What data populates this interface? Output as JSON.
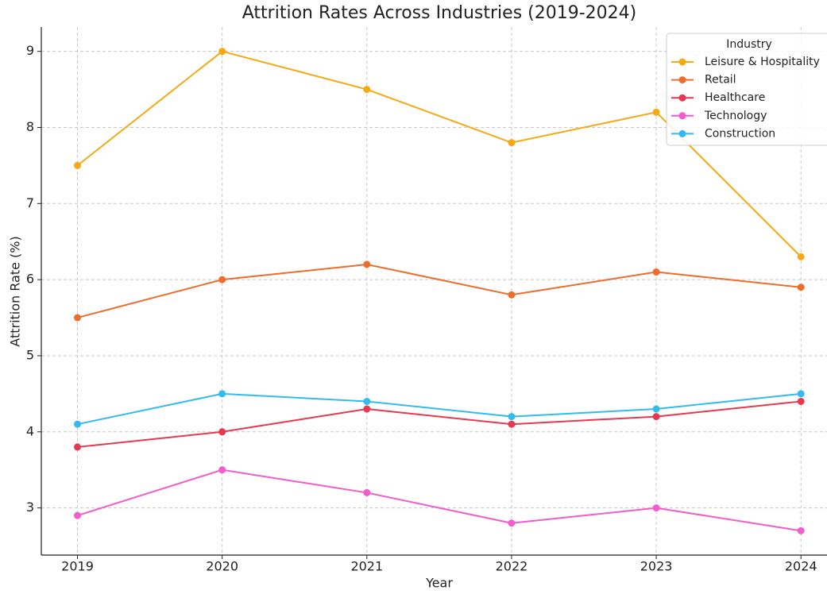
{
  "chart_data": {
    "type": "line",
    "title": "Attrition Rates Across Industries (2019-2024)",
    "xlabel": "Year",
    "ylabel": "Attrition Rate (%)",
    "x": [
      2019,
      2020,
      2021,
      2022,
      2023,
      2024
    ],
    "xlim": [
      2018.75,
      2024.18
    ],
    "xticks": [
      2019,
      2020,
      2021,
      2022,
      2023,
      2024
    ],
    "ylim": [
      2.38,
      9.32
    ],
    "yticks": [
      3,
      4,
      5,
      6,
      7,
      8,
      9
    ],
    "grid": true,
    "legend": "upper right",
    "legend_title": "Industry",
    "series": [
      {
        "name": "Leisure & Hospitality",
        "color": "#f5a914",
        "values": [
          7.5,
          9.0,
          8.5,
          7.8,
          8.2,
          6.3
        ]
      },
      {
        "name": "Retail",
        "color": "#ee6d2d",
        "values": [
          5.5,
          6.0,
          6.2,
          5.8,
          6.1,
          5.9
        ]
      },
      {
        "name": "Healthcare",
        "color": "#e8384f",
        "values": [
          3.8,
          4.0,
          4.3,
          4.1,
          4.2,
          4.4
        ]
      },
      {
        "name": "Technology",
        "color": "#f25ccb",
        "values": [
          2.9,
          3.5,
          3.2,
          2.8,
          3.0,
          2.7
        ]
      },
      {
        "name": "Construction",
        "color": "#33bbee",
        "values": [
          4.1,
          4.5,
          4.4,
          4.2,
          4.3,
          4.5
        ]
      }
    ]
  }
}
